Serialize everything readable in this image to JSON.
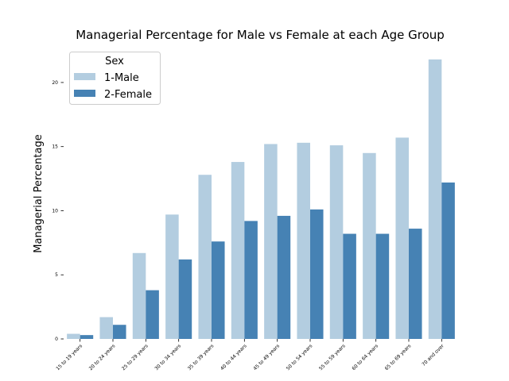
{
  "chart_data": {
    "type": "bar",
    "title": "Managerial Percentage for Male vs Female at each Age Group",
    "xlabel": "",
    "ylabel": "Managerial Percentage",
    "ylim": [
      0,
      22
    ],
    "yticks": [
      0,
      5,
      10,
      15,
      20
    ],
    "categories": [
      "15 to 19 years",
      "20 to 24 years",
      "25 to 29 years",
      "30 to 34 years",
      "35 to 39 years",
      "40 to 44 years",
      "45 to 49 years",
      "50 to 54 years",
      "55 to 59 years",
      "60 to 64 years",
      "65 to 69 years",
      "70 and over"
    ],
    "legend": {
      "title": "Sex",
      "position": "top-left"
    },
    "grid": false,
    "series": [
      {
        "name": "1-Male",
        "color": "#b3cde0",
        "values": [
          0.4,
          1.7,
          6.7,
          9.7,
          12.8,
          13.8,
          15.2,
          15.3,
          15.1,
          14.5,
          15.7,
          21.8
        ]
      },
      {
        "name": "2-Female",
        "color": "#4682b4",
        "values": [
          0.3,
          1.1,
          3.8,
          6.2,
          7.6,
          9.2,
          9.6,
          10.1,
          8.2,
          8.2,
          8.6,
          12.2
        ]
      }
    ]
  }
}
